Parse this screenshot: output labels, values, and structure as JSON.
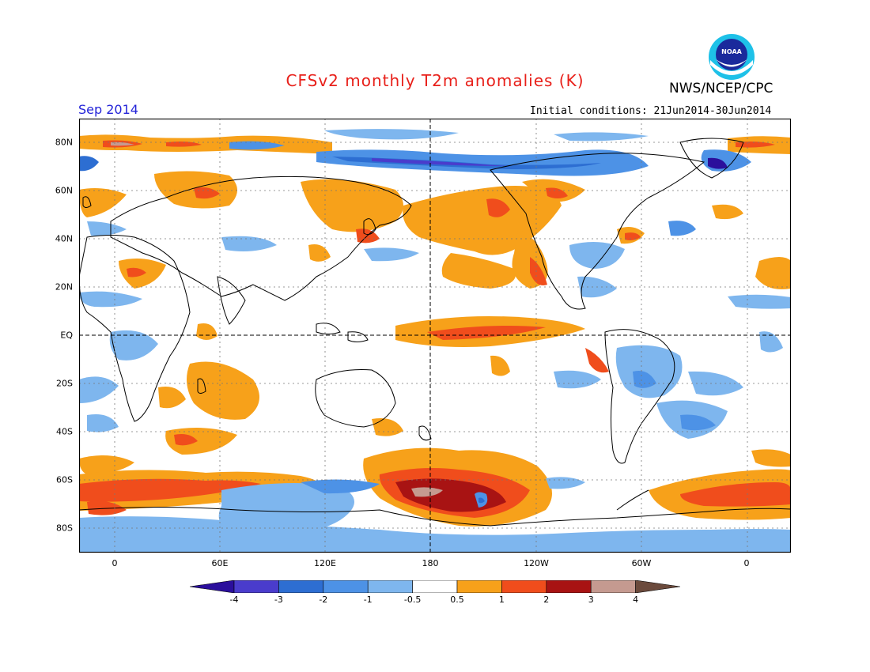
{
  "header": {
    "title": "CFSv2 monthly T2m anomalies (K)",
    "agency": "NWS/NCEP/CPC",
    "logo_text": "NOAA",
    "month": "Sep 2014",
    "initial_conditions": "Initial conditions: 21Jun2014-30Jun2014"
  },
  "map": {
    "lat_labels": [
      "80N",
      "60N",
      "40N",
      "20N",
      "EQ",
      "20S",
      "40S",
      "60S",
      "80S"
    ],
    "lon_labels": [
      "0",
      "60E",
      "120E",
      "180",
      "120W",
      "60W",
      "0"
    ]
  },
  "legend": {
    "labels": [
      "-4",
      "-3",
      "-2",
      "-1",
      "-0.5",
      "0.5",
      "1",
      "2",
      "3",
      "4"
    ],
    "colors": [
      "#2b0f9c",
      "#4a3ccc",
      "#2d6ed2",
      "#4d92e6",
      "#7eb6ee",
      "#ffffff",
      "#f7a11a",
      "#f04d1c",
      "#a81313",
      "#c59a90",
      "#6b4a3c"
    ]
  }
}
